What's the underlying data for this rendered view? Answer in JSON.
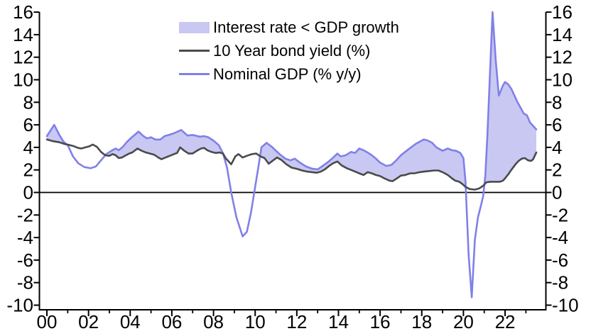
{
  "page": {
    "background": "#ffffff"
  },
  "legend": {
    "items": [
      {
        "label": "Interest rate < GDP growth",
        "marker": "area-swatch",
        "color": "#c8c8f2"
      },
      {
        "label": "10 Year bond yield (%)",
        "marker": "line",
        "color": "#4a4a4a"
      },
      {
        "label": "Nominal GDP (% y/y)",
        "marker": "line",
        "color": "#8080e8"
      }
    ]
  },
  "chart_data": {
    "type": "line",
    "title": "",
    "xlabel": "",
    "ylabel": "",
    "ylim": [
      -10,
      16
    ],
    "x_range_years": [
      1999.6,
      2024.0
    ],
    "grid": false,
    "zero_line": true,
    "legend_position": "top-center",
    "y_axis": {
      "ticks": [
        16,
        14,
        12,
        10,
        8,
        6,
        4,
        2,
        0,
        -2,
        -4,
        -6,
        -8,
        -10
      ],
      "labels": [
        "16",
        "14",
        "12",
        "10",
        "8",
        "6",
        "4",
        "2",
        "0",
        "-2",
        "-4",
        "-6",
        "-8",
        "-10"
      ],
      "sides": [
        "left",
        "right"
      ]
    },
    "x_axis": {
      "major_years": [
        2000,
        2002,
        2004,
        2006,
        2008,
        2010,
        2012,
        2014,
        2016,
        2018,
        2020,
        2022
      ],
      "major_labels": [
        "00",
        "02",
        "04",
        "06",
        "08",
        "10",
        "12",
        "14",
        "16",
        "18",
        "20",
        "22"
      ],
      "minor_years": [
        2001,
        2003,
        2005,
        2007,
        2009,
        2011,
        2013,
        2015,
        2017,
        2019,
        2021,
        2023
      ]
    },
    "shading": {
      "name": "Interest rate < GDP growth",
      "color": "#c8c8f2",
      "rule": "nominal_gdp_above_bond_yield"
    },
    "series": [
      {
        "id": "bond_yield",
        "name": "10 Year bond yield (%)",
        "color": "#4a4a4a",
        "points": [
          [
            2000.0,
            4.7
          ],
          [
            2000.3,
            4.55
          ],
          [
            2000.6,
            4.45
          ],
          [
            2000.85,
            4.3
          ],
          [
            2001.1,
            4.2
          ],
          [
            2001.3,
            4.1
          ],
          [
            2001.5,
            3.95
          ],
          [
            2001.65,
            3.9
          ],
          [
            2001.85,
            4.0
          ],
          [
            2002.05,
            4.1
          ],
          [
            2002.2,
            4.25
          ],
          [
            2002.4,
            4.05
          ],
          [
            2002.6,
            3.6
          ],
          [
            2002.8,
            3.3
          ],
          [
            2003.0,
            3.25
          ],
          [
            2003.15,
            3.4
          ],
          [
            2003.3,
            3.3
          ],
          [
            2003.45,
            3.05
          ],
          [
            2003.6,
            3.1
          ],
          [
            2003.75,
            3.25
          ],
          [
            2003.95,
            3.45
          ],
          [
            2004.1,
            3.55
          ],
          [
            2004.35,
            3.9
          ],
          [
            2004.55,
            3.7
          ],
          [
            2004.75,
            3.55
          ],
          [
            2004.95,
            3.45
          ],
          [
            2005.15,
            3.35
          ],
          [
            2005.35,
            3.1
          ],
          [
            2005.5,
            2.95
          ],
          [
            2005.7,
            3.1
          ],
          [
            2005.9,
            3.25
          ],
          [
            2006.1,
            3.4
          ],
          [
            2006.25,
            3.5
          ],
          [
            2006.4,
            4.0
          ],
          [
            2006.6,
            3.7
          ],
          [
            2006.8,
            3.45
          ],
          [
            2007.0,
            3.45
          ],
          [
            2007.2,
            3.7
          ],
          [
            2007.4,
            3.9
          ],
          [
            2007.55,
            3.95
          ],
          [
            2007.7,
            3.75
          ],
          [
            2007.9,
            3.6
          ],
          [
            2008.1,
            3.5
          ],
          [
            2008.3,
            3.55
          ],
          [
            2008.45,
            3.45
          ],
          [
            2008.6,
            3.0
          ],
          [
            2008.85,
            2.5
          ],
          [
            2009.05,
            3.2
          ],
          [
            2009.2,
            3.4
          ],
          [
            2009.4,
            3.1
          ],
          [
            2009.6,
            3.25
          ],
          [
            2009.85,
            3.4
          ],
          [
            2010.05,
            3.45
          ],
          [
            2010.25,
            3.2
          ],
          [
            2010.45,
            3.05
          ],
          [
            2010.65,
            2.55
          ],
          [
            2010.9,
            2.9
          ],
          [
            2011.05,
            3.1
          ],
          [
            2011.25,
            2.9
          ],
          [
            2011.5,
            2.5
          ],
          [
            2011.75,
            2.2
          ],
          [
            2012.0,
            2.1
          ],
          [
            2012.25,
            1.95
          ],
          [
            2012.5,
            1.85
          ],
          [
            2012.75,
            1.8
          ],
          [
            2012.95,
            1.75
          ],
          [
            2013.15,
            1.85
          ],
          [
            2013.35,
            2.05
          ],
          [
            2013.55,
            2.35
          ],
          [
            2013.75,
            2.6
          ],
          [
            2013.95,
            2.75
          ],
          [
            2014.15,
            2.4
          ],
          [
            2014.4,
            2.15
          ],
          [
            2014.6,
            2.0
          ],
          [
            2014.8,
            1.85
          ],
          [
            2015.0,
            1.7
          ],
          [
            2015.2,
            1.55
          ],
          [
            2015.4,
            1.8
          ],
          [
            2015.6,
            1.7
          ],
          [
            2015.8,
            1.55
          ],
          [
            2016.0,
            1.45
          ],
          [
            2016.2,
            1.25
          ],
          [
            2016.45,
            1.05
          ],
          [
            2016.6,
            1.0
          ],
          [
            2016.85,
            1.3
          ],
          [
            2017.0,
            1.5
          ],
          [
            2017.2,
            1.55
          ],
          [
            2017.45,
            1.7
          ],
          [
            2017.65,
            1.7
          ],
          [
            2017.9,
            1.8
          ],
          [
            2018.1,
            1.85
          ],
          [
            2018.35,
            1.9
          ],
          [
            2018.6,
            1.95
          ],
          [
            2018.8,
            1.95
          ],
          [
            2019.0,
            1.8
          ],
          [
            2019.25,
            1.55
          ],
          [
            2019.45,
            1.25
          ],
          [
            2019.6,
            1.05
          ],
          [
            2019.8,
            0.95
          ],
          [
            2019.95,
            0.75
          ],
          [
            2020.1,
            0.5
          ],
          [
            2020.3,
            0.3
          ],
          [
            2020.55,
            0.25
          ],
          [
            2020.75,
            0.35
          ],
          [
            2020.95,
            0.6
          ],
          [
            2021.1,
            0.9
          ],
          [
            2021.3,
            0.95
          ],
          [
            2021.55,
            0.95
          ],
          [
            2021.75,
            0.95
          ],
          [
            2021.9,
            1.05
          ],
          [
            2022.0,
            1.25
          ],
          [
            2022.15,
            1.6
          ],
          [
            2022.3,
            2.0
          ],
          [
            2022.5,
            2.5
          ],
          [
            2022.65,
            2.8
          ],
          [
            2022.8,
            3.0
          ],
          [
            2022.95,
            3.05
          ],
          [
            2023.1,
            2.85
          ],
          [
            2023.25,
            2.8
          ],
          [
            2023.35,
            2.95
          ],
          [
            2023.5,
            3.55
          ]
        ]
      },
      {
        "id": "nominal_gdp",
        "name": "Nominal GDP (% y/y)",
        "color": "#8080e8",
        "points": [
          [
            2000.0,
            5.0
          ],
          [
            2000.35,
            6.0
          ],
          [
            2000.6,
            5.1
          ],
          [
            2000.8,
            4.5
          ],
          [
            2001.0,
            4.2
          ],
          [
            2001.25,
            3.2
          ],
          [
            2001.5,
            2.6
          ],
          [
            2001.8,
            2.25
          ],
          [
            2002.1,
            2.15
          ],
          [
            2002.35,
            2.3
          ],
          [
            2002.6,
            2.85
          ],
          [
            2002.85,
            3.4
          ],
          [
            2003.1,
            3.7
          ],
          [
            2003.3,
            3.9
          ],
          [
            2003.45,
            3.75
          ],
          [
            2003.65,
            4.05
          ],
          [
            2003.85,
            4.5
          ],
          [
            2004.05,
            4.85
          ],
          [
            2004.4,
            5.4
          ],
          [
            2004.6,
            5.05
          ],
          [
            2004.8,
            4.8
          ],
          [
            2005.0,
            4.9
          ],
          [
            2005.2,
            4.7
          ],
          [
            2005.45,
            4.7
          ],
          [
            2005.65,
            5.0
          ],
          [
            2005.85,
            5.1
          ],
          [
            2006.1,
            5.25
          ],
          [
            2006.45,
            5.55
          ],
          [
            2006.75,
            5.05
          ],
          [
            2007.0,
            5.1
          ],
          [
            2007.35,
            4.95
          ],
          [
            2007.55,
            5.0
          ],
          [
            2007.75,
            4.9
          ],
          [
            2008.0,
            4.6
          ],
          [
            2008.25,
            4.2
          ],
          [
            2008.45,
            3.5
          ],
          [
            2008.65,
            2.2
          ],
          [
            2008.85,
            0.0
          ],
          [
            2009.1,
            -2.2
          ],
          [
            2009.4,
            -3.9
          ],
          [
            2009.6,
            -3.5
          ],
          [
            2009.8,
            -1.8
          ],
          [
            2010.0,
            0.5
          ],
          [
            2010.15,
            2.2
          ],
          [
            2010.3,
            4.0
          ],
          [
            2010.55,
            4.4
          ],
          [
            2010.8,
            4.05
          ],
          [
            2011.0,
            3.7
          ],
          [
            2011.2,
            3.35
          ],
          [
            2011.45,
            3.0
          ],
          [
            2011.7,
            2.85
          ],
          [
            2011.9,
            3.0
          ],
          [
            2012.15,
            2.65
          ],
          [
            2012.45,
            2.3
          ],
          [
            2012.75,
            2.1
          ],
          [
            2013.0,
            2.05
          ],
          [
            2013.2,
            2.3
          ],
          [
            2013.5,
            2.7
          ],
          [
            2013.75,
            3.1
          ],
          [
            2013.95,
            3.45
          ],
          [
            2014.1,
            3.2
          ],
          [
            2014.35,
            3.3
          ],
          [
            2014.6,
            3.6
          ],
          [
            2014.8,
            3.5
          ],
          [
            2015.0,
            3.9
          ],
          [
            2015.2,
            3.75
          ],
          [
            2015.4,
            3.55
          ],
          [
            2015.6,
            3.3
          ],
          [
            2015.8,
            3.0
          ],
          [
            2016.0,
            2.65
          ],
          [
            2016.3,
            2.35
          ],
          [
            2016.55,
            2.45
          ],
          [
            2016.8,
            2.9
          ],
          [
            2017.0,
            3.3
          ],
          [
            2017.2,
            3.6
          ],
          [
            2017.45,
            3.95
          ],
          [
            2017.7,
            4.3
          ],
          [
            2017.9,
            4.5
          ],
          [
            2018.1,
            4.7
          ],
          [
            2018.3,
            4.6
          ],
          [
            2018.5,
            4.4
          ],
          [
            2018.7,
            4.0
          ],
          [
            2018.85,
            3.85
          ],
          [
            2019.0,
            3.7
          ],
          [
            2019.25,
            3.9
          ],
          [
            2019.45,
            3.75
          ],
          [
            2019.65,
            3.7
          ],
          [
            2019.85,
            3.5
          ],
          [
            2020.0,
            3.05
          ],
          [
            2020.1,
            1.0
          ],
          [
            2020.25,
            -5.5
          ],
          [
            2020.4,
            -9.3
          ],
          [
            2020.55,
            -4.2
          ],
          [
            2020.7,
            -2.2
          ],
          [
            2020.85,
            -1.1
          ],
          [
            2020.95,
            -0.3
          ],
          [
            2021.05,
            1.5
          ],
          [
            2021.15,
            5.0
          ],
          [
            2021.4,
            16.0
          ],
          [
            2021.55,
            11.8
          ],
          [
            2021.7,
            8.6
          ],
          [
            2021.9,
            9.5
          ],
          [
            2022.0,
            9.8
          ],
          [
            2022.15,
            9.6
          ],
          [
            2022.3,
            9.2
          ],
          [
            2022.45,
            8.6
          ],
          [
            2022.6,
            8.0
          ],
          [
            2022.75,
            7.5
          ],
          [
            2022.9,
            7.0
          ],
          [
            2023.05,
            6.85
          ],
          [
            2023.2,
            6.2
          ],
          [
            2023.35,
            5.9
          ],
          [
            2023.5,
            5.6
          ]
        ]
      }
    ]
  }
}
